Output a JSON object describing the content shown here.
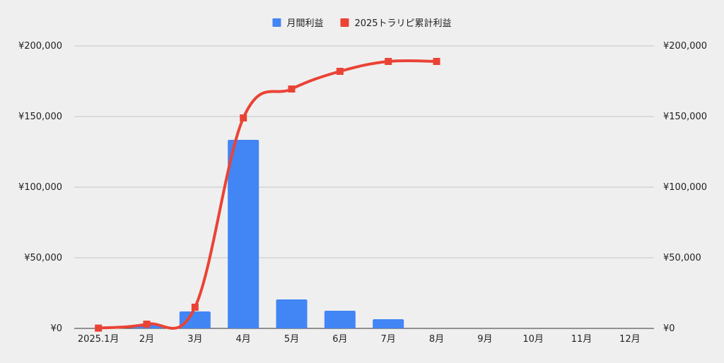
{
  "chart_data": {
    "type": "bar",
    "categories": [
      "2025.1月",
      "2月",
      "3月",
      "4月",
      "5月",
      "6月",
      "7月",
      "8月",
      "9月",
      "10月",
      "11月",
      "12月"
    ],
    "series": [
      {
        "name": "月間利益",
        "type": "bar",
        "axis": "left",
        "color": "#4285f4",
        "values": [
          200,
          2500,
          12000,
          133500,
          20500,
          12500,
          6500,
          0,
          0,
          0,
          0,
          0
        ]
      },
      {
        "name": "2025トラリピ累計利益",
        "type": "line",
        "axis": "right",
        "color": "#ea4335",
        "values": [
          200,
          3000,
          15000,
          149000,
          169500,
          182000,
          189000,
          189000,
          null,
          null,
          null,
          null
        ]
      }
    ],
    "ylim": [
      0,
      200000
    ],
    "y2lim": [
      0,
      200000
    ],
    "yticks": [
      "¥0",
      "¥50,000",
      "¥100,000",
      "¥150,000",
      "¥200,000"
    ],
    "y2ticks": [
      "¥0",
      "¥50,000",
      "¥100,000",
      "¥150,000",
      "¥200,000"
    ],
    "ytick_values": [
      0,
      50000,
      100000,
      150000,
      200000
    ],
    "grid": true,
    "legend": "top-center",
    "title": "",
    "xlabel": "",
    "ylabel": ""
  }
}
